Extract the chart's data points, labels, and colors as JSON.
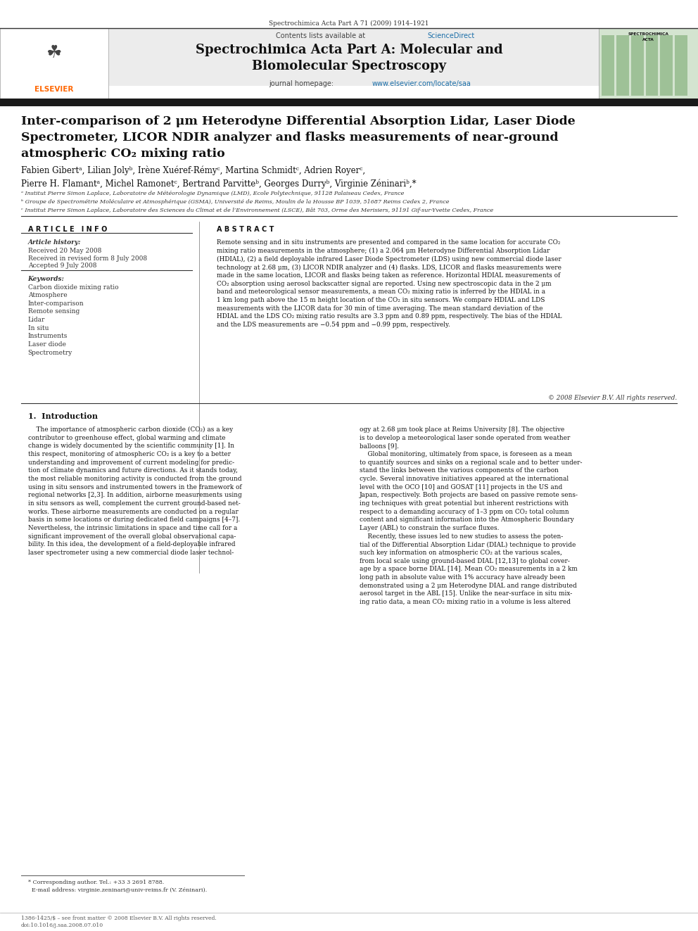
{
  "page_width": 9.92,
  "page_height": 13.23,
  "background_color": "#ffffff",
  "top_journal_line": "Spectrochimica Acta Part A 71 (2009) 1914–1921",
  "header_bg": "#e8e8e8",
  "header_contents": "Contents lists available at ScienceDirect",
  "header_journal_title": "Spectrochimica Acta Part A: Molecular and\nBiomolecular Spectroscopy",
  "elsevier_color": "#ff6600",
  "sciencedirect_color": "#1a6ea8",
  "homepage_color": "#1a6ea8",
  "divider_color": "#2c2c2c",
  "article_title": "Inter-comparison of 2 μm Heterodyne Differential Absorption Lidar, Laser Diode\nSpectrometer, LICOR NDIR analyzer and flasks measurements of near-ground\natmospheric CO₂ mixing ratio",
  "authors_line1": "Fabien Gibertᵃ, Lilian Jolyᵇ, Irène Xuéref-Rémyᶜ, Martina Schmidtᶜ, Adrien Royerᶜ,",
  "authors_line2": "Pierre H. Flamantᵃ, Michel Ramonetᶜ, Bertrand Parvitteᵇ, Georges Durryᵇ, Virginie Zéninariᵇ,*",
  "affil_a": "ᵃ Institut Pierre Simon Laplace, Laboratoire de Météorologie Dynamique (LMD), Ecole Polytechnique, 91128 Palaiseau Cedex, France",
  "affil_b": "ᵇ Groupe de Spectrométrie Moléculaire et Atmosphérique (GSMA), Université de Reims, Moulin de la Housse BP 1039, 51687 Reims Cedex 2, France",
  "affil_c": "ᶜ Institut Pierre Simon Laplace, Laboratoire des Sciences du Climat et de l’Environnement (LSCE), Bât 703, Orme des Merisiers, 91191 Gif-sur-Yvette Cedex, France",
  "article_info_title": "A R T I C L E   I N F O",
  "abstract_title": "A B S T R A C T",
  "article_history_label": "Article history:",
  "received1": "Received 20 May 2008",
  "received2": "Received in revised form 8 July 2008",
  "accepted": "Accepted 9 July 2008",
  "keywords_label": "Keywords:",
  "keywords": [
    "Carbon dioxide mixing ratio",
    "Atmosphere",
    "Inter-comparison",
    "Remote sensing",
    "Lidar",
    "In situ",
    "Instruments",
    "Laser diode",
    "Spectrometry"
  ],
  "abstract_text": "Remote sensing and in situ instruments are presented and compared in the same location for accurate CO₂\nmixing ratio measurements in the atmosphere; (1) a 2.064 μm Heterodyne Differential Absorption Lidar\n(HDIAL), (2) a field deployable infrared Laser Diode Spectrometer (LDS) using new commercial diode laser\ntechnology at 2.68 μm, (3) LICOR NDIR analyzer and (4) flasks. LDS, LICOR and flasks measurements were\nmade in the same location, LICOR and flasks being taken as reference. Horizontal HDIAL measurements of\nCO₂ absorption using aerosol backscatter signal are reported. Using new spectroscopic data in the 2 μm\nband and meteorological sensor measurements, a mean CO₂ mixing ratio is inferred by the HDIAL in a\n1 km long path above the 15 m height location of the CO₂ in situ sensors. We compare HDIAL and LDS\nmeasurements with the LICOR data for 30 min of time averaging. The mean standard deviation of the\nHDIAL and the LDS CO₂ mixing ratio results are 3.3 ppm and 0.89 ppm, respectively. The bias of the HDIAL\nand the LDS measurements are −0.54 ppm and −0.99 ppm, respectively.",
  "copyright": "© 2008 Elsevier B.V. All rights reserved.",
  "intro_title": "1.  Introduction",
  "intro_col1": "    The importance of atmospheric carbon dioxide (CO₂) as a key\ncontributor to greenhouse effect, global warming and climate\nchange is widely documented by the scientific community [1]. In\nthis respect, monitoring of atmospheric CO₂ is a key to a better\nunderstanding and improvement of current modeling for predic-\ntion of climate dynamics and future directions. As it stands today,\nthe most reliable monitoring activity is conducted from the ground\nusing in situ sensors and instrumented towers in the framework of\nregional networks [2,3]. In addition, airborne measurements using\nin situ sensors as well, complement the current ground-based net-\nworks. These airborne measurements are conducted on a regular\nbasis in some locations or during dedicated field campaigns [4–7].\nNevertheless, the intrinsic limitations in space and time call for a\nsignificant improvement of the overall global observational capa-\nbility. In this idea, the development of a field-deployable infrared\nlaser spectrometer using a new commercial diode laser technol-",
  "intro_col2": "ogy at 2.68 μm took place at Reims University [8]. The objective\nis to develop a meteorological laser sonde operated from weather\nballoons [9].\n    Global monitoring, ultimately from space, is foreseen as a mean\nto quantify sources and sinks on a regional scale and to better under-\nstand the links between the various components of the carbon\ncycle. Several innovative initiatives appeared at the international\nlevel with the OCO [10] and GOSAT [11] projects in the US and\nJapan, respectively. Both projects are based on passive remote sens-\ning techniques with great potential but inherent restrictions with\nrespect to a demanding accuracy of 1–3 ppm on CO₂ total column\ncontent and significant information into the Atmospheric Boundary\nLayer (ABL) to constrain the surface fluxes.\n    Recently, these issues led to new studies to assess the poten-\ntial of the Differential Absorption Lidar (DIAL) technique to provide\nsuch key information on atmospheric CO₂ at the various scales,\nfrom local scale using ground-based DIAL [12,13] to global cover-\nage by a space borne DIAL [14]. Mean CO₂ measurements in a 2 km\nlong path in absolute value with 1% accuracy have already been\ndemonstrated using a 2 μm Heterodyne DIAL and range distributed\naerosol target in the ABL [15]. Unlike the near-surface in situ mix-\ning ratio data, a mean CO₂ mixing ratio in a volume is less altered",
  "footnote_star": "* Corresponding author. Tel.: +33 3 2691 8788.",
  "footnote_email": "  E-mail address: virginie.zeninari@univ-reims.fr (V. Zéninari).",
  "footer_issn": "1386-1425/$ – see front matter © 2008 Elsevier B.V. All rights reserved.",
  "footer_doi": "doi:10.1016/j.saa.2008.07.010"
}
